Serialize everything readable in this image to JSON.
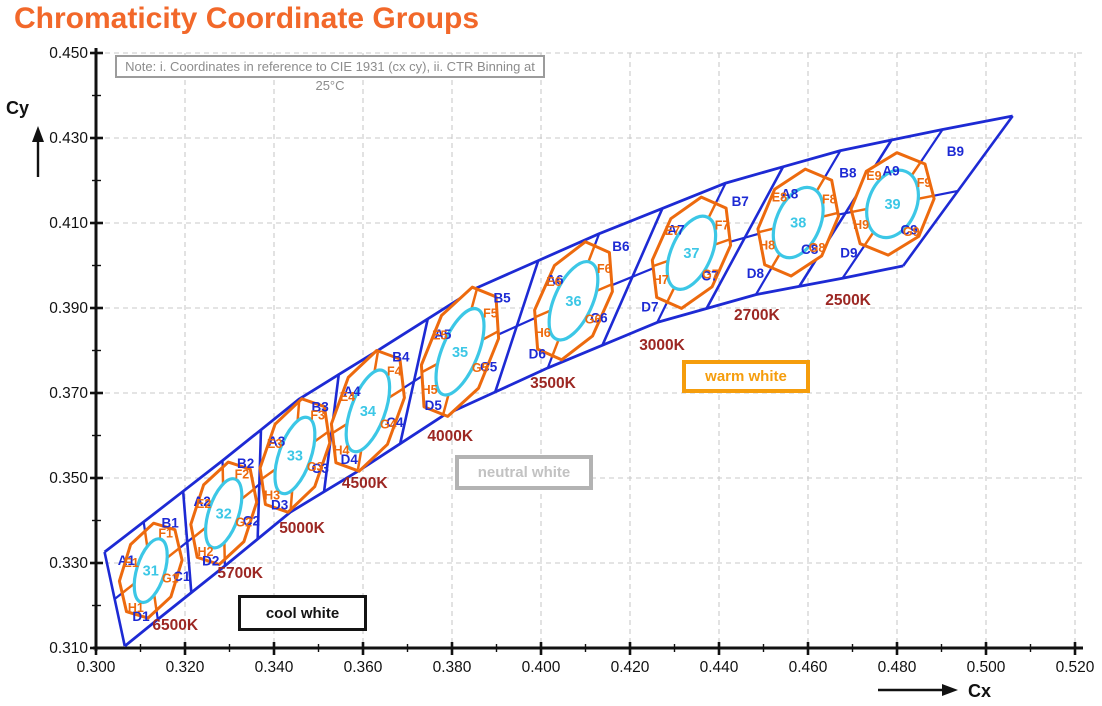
{
  "chart_data": {
    "type": "binning-diagram",
    "title": "Chromaticity Coordinate Groups",
    "note": "Note: i. Coordinates in reference to CIE 1931 (cx cy), ii. CTR Binning at 25°C",
    "x_axis": {
      "label": "Cx",
      "min": 0.3,
      "max": 0.52,
      "major_step": 0.02,
      "minor_step": 0.01,
      "tick_labels": [
        "0.300",
        "0.320",
        "0.340",
        "0.360",
        "0.380",
        "0.400",
        "0.420",
        "0.440",
        "0.460",
        "0.480",
        "0.500",
        "0.520"
      ]
    },
    "y_axis": {
      "label": "Cy",
      "min": 0.31,
      "max": 0.45,
      "major_step": 0.02,
      "minor_step": 0.01,
      "tick_labels": [
        "0.450",
        "0.430",
        "0.410",
        "0.390",
        "0.370",
        "0.350",
        "0.330",
        "0.310"
      ]
    },
    "legend": [
      {
        "label": "cool white",
        "color": "#141414"
      },
      {
        "label": "neutral white",
        "color": "#b3b3b3"
      },
      {
        "label": "warm white",
        "color": "#f59d0c"
      }
    ],
    "grid": true,
    "colors": {
      "mesh_blue": "#1d2ad4",
      "bin_orange": "#ed6a0e",
      "ellipse_cyan": "#3cc7e6",
      "cct_red": "#9c2723",
      "title_orange": "#f2682a"
    },
    "clusters": [
      {
        "bin": "31",
        "cct": "6500K",
        "center": [
          0.3123,
          0.3282
        ],
        "cct_label_pos": [
          0.3178,
          0.3154
        ],
        "quadrants": [
          "A1",
          "B1",
          "C1",
          "D1"
        ],
        "ring_bins": [
          "E1",
          "F1",
          "G1",
          "H1"
        ]
      },
      {
        "bin": "32",
        "cct": "5700K",
        "center": [
          0.3287,
          0.3417
        ],
        "cct_label_pos": [
          0.3324,
          0.3276
        ],
        "quadrants": [
          "A2",
          "B2",
          "C2",
          "D2"
        ],
        "ring_bins": [
          "E2",
          "F2",
          "G2",
          "H2"
        ]
      },
      {
        "bin": "33",
        "cct": "5000K",
        "center": [
          0.3447,
          0.3553
        ],
        "cct_label_pos": [
          0.3463,
          0.3382
        ],
        "quadrants": [
          "A3",
          "B3",
          "C3",
          "D3"
        ],
        "ring_bins": [
          "E3",
          "F3",
          "G3",
          "H3"
        ]
      },
      {
        "bin": "34",
        "cct": "4500K",
        "center": [
          0.3611,
          0.3658
        ],
        "cct_label_pos": [
          0.3604,
          0.3488
        ],
        "quadrants": [
          "A4",
          "B4",
          "C4",
          "D4"
        ],
        "ring_bins": [
          "E4",
          "F4",
          "G4",
          "H4"
        ]
      },
      {
        "bin": "35",
        "cct": "4000K",
        "center": [
          0.3818,
          0.3797
        ],
        "cct_label_pos": [
          0.3796,
          0.3599
        ],
        "quadrants": [
          "A5",
          "B5",
          "C5",
          "D5"
        ],
        "ring_bins": [
          "E5",
          "F5",
          "G5",
          "H5"
        ]
      },
      {
        "bin": "36",
        "cct": "3500K",
        "center": [
          0.4073,
          0.3917
        ],
        "cct_label_pos": [
          0.4027,
          0.3724
        ],
        "quadrants": [
          "A6",
          "B6",
          "C6",
          "D6"
        ],
        "ring_bins": [
          "E6",
          "F6",
          "G6",
          "H6"
        ]
      },
      {
        "bin": "37",
        "cct": "3000K",
        "center": [
          0.4338,
          0.403
        ],
        "cct_label_pos": [
          0.4272,
          0.3813
        ],
        "quadrants": [
          "A7",
          "B7",
          "C7",
          "D7"
        ],
        "ring_bins": [
          "E7",
          "F7",
          "G7",
          "H7"
        ]
      },
      {
        "bin": "38",
        "cct": "2700K",
        "center": [
          0.4578,
          0.4101
        ],
        "cct_label_pos": [
          0.4485,
          0.3884
        ],
        "quadrants": [
          "A8",
          "B8",
          "C8",
          "D8"
        ],
        "ring_bins": [
          "E8",
          "F8",
          "G8",
          "H8"
        ]
      },
      {
        "bin": "39",
        "cct": "2500K",
        "center": [
          0.479,
          0.4145
        ],
        "cct_label_pos": [
          0.469,
          0.3919
        ],
        "quadrants": [
          "A9",
          "B9",
          "C9",
          "D9"
        ],
        "ring_bins": [
          "E9",
          "F9",
          "G9",
          "H9"
        ]
      }
    ]
  }
}
